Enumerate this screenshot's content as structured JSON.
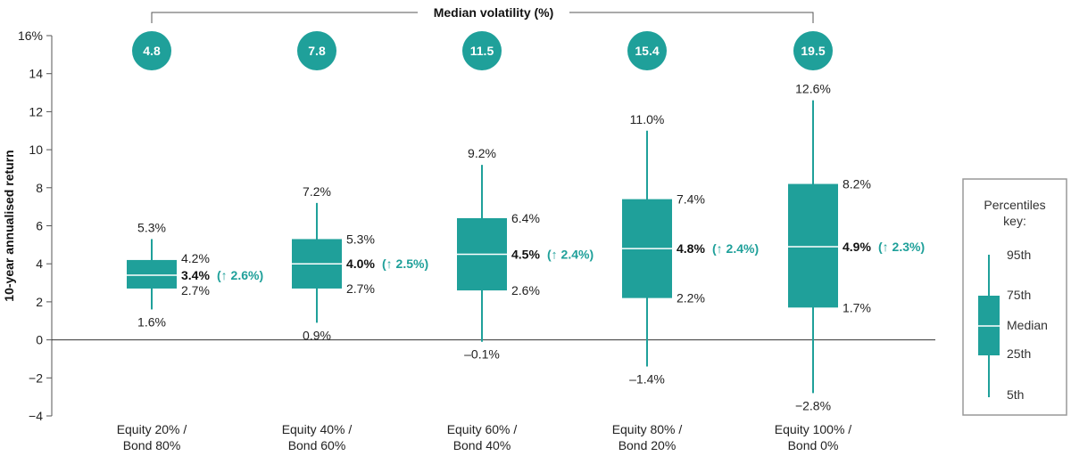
{
  "chart_data": {
    "type": "boxplot",
    "title": "Median volatility (%)",
    "ylabel": "10-year annualised return",
    "ylim": [
      -4,
      16
    ],
    "yticks": [
      "16%",
      "14",
      "12",
      "10",
      "8",
      "6",
      "4",
      "2",
      "0",
      "−2",
      "−4"
    ],
    "ytick_values": [
      16,
      14,
      12,
      10,
      8,
      6,
      4,
      2,
      0,
      -2,
      -4
    ],
    "accent_color": "#1fa09a",
    "categories": [
      {
        "line1": "Equity 20% /",
        "line2": "Bond 80%",
        "volatility": "4.8",
        "p5": 1.6,
        "p25": 2.7,
        "median": 3.4,
        "p75": 4.2,
        "p95": 5.3,
        "labels": {
          "p5": "1.6%",
          "p25": "2.7%",
          "median": "3.4%",
          "change": "(↑ 2.6%)",
          "p75": "4.2%",
          "p95": "5.3%"
        }
      },
      {
        "line1": "Equity 40% /",
        "line2": "Bond 60%",
        "volatility": "7.8",
        "p5": 0.9,
        "p25": 2.7,
        "median": 4.0,
        "p75": 5.3,
        "p95": 7.2,
        "labels": {
          "p5": "0.9%",
          "p25": "2.7%",
          "median": "4.0%",
          "change": "(↑ 2.5%)",
          "p75": "5.3%",
          "p95": "7.2%"
        }
      },
      {
        "line1": "Equity 60% /",
        "line2": "Bond 40%",
        "volatility": "11.5",
        "p5": -0.1,
        "p25": 2.6,
        "median": 4.5,
        "p75": 6.4,
        "p95": 9.2,
        "labels": {
          "p5": "–0.1%",
          "p25": "2.6%",
          "median": "4.5%",
          "change": "(↑ 2.4%)",
          "p75": "6.4%",
          "p95": "9.2%"
        }
      },
      {
        "line1": "Equity 80% /",
        "line2": "Bond 20%",
        "volatility": "15.4",
        "p5": -1.4,
        "p25": 2.2,
        "median": 4.8,
        "p75": 7.4,
        "p95": 11.0,
        "labels": {
          "p5": "–1.4%",
          "p25": "2.2%",
          "median": "4.8%",
          "change": "(↑ 2.4%)",
          "p75": "7.4%",
          "p95": "11.0%"
        }
      },
      {
        "line1": "Equity 100% /",
        "line2": "Bond 0%",
        "volatility": "19.5",
        "p5": -2.8,
        "p25": 1.7,
        "median": 4.9,
        "p75": 8.2,
        "p95": 12.6,
        "labels": {
          "p5": "−2.8%",
          "p25": "1.7%",
          "median": "4.9%",
          "change": "(↑ 2.3%)",
          "p75": "8.2%",
          "p95": "12.6%"
        }
      }
    ],
    "legend": {
      "title_line1": "Percentiles",
      "title_line2": "key:",
      "items": [
        "95th",
        "75th",
        "Median",
        "25th",
        "5th"
      ]
    }
  }
}
